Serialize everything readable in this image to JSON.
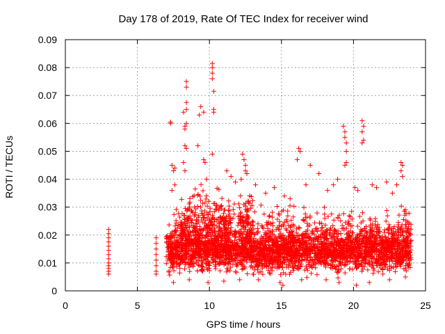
{
  "chart_data": {
    "type": "scatter",
    "title": "Day 178 of 2019, Rate Of TEC Index for receiver wind",
    "xlabel": "GPS time / hours",
    "ylabel": "ROTI / TECUs",
    "xlim": [
      0,
      25
    ],
    "ylim": [
      0,
      0.09
    ],
    "xticks": [
      0,
      5,
      10,
      15,
      20,
      25
    ],
    "xtick_labels": [
      "0",
      "5",
      "10",
      "15",
      "20",
      "25"
    ],
    "yticks": [
      0,
      0.01,
      0.02,
      0.03,
      0.04,
      0.05,
      0.06,
      0.07,
      0.08,
      0.09
    ],
    "ytick_labels": [
      "0",
      "0.01",
      "0.02",
      "0.03",
      "0.04",
      "0.05",
      "0.06",
      "0.07",
      "0.08",
      "0.09"
    ],
    "grid": true,
    "marker": "+",
    "color": "#ff0000",
    "points": [
      [
        3.0,
        0.022
      ],
      [
        3.0,
        0.0205
      ],
      [
        3.0,
        0.019
      ],
      [
        3.0,
        0.0175
      ],
      [
        3.0,
        0.016
      ],
      [
        3.0,
        0.0145
      ],
      [
        3.0,
        0.013
      ],
      [
        3.0,
        0.0115
      ],
      [
        3.0,
        0.01
      ],
      [
        3.0,
        0.009
      ],
      [
        3.0,
        0.008
      ],
      [
        3.0,
        0.007
      ],
      [
        3.0,
        0.006
      ],
      [
        6.3,
        0.019
      ],
      [
        6.3,
        0.017
      ],
      [
        6.3,
        0.015
      ],
      [
        6.3,
        0.013
      ],
      [
        6.3,
        0.011
      ],
      [
        6.3,
        0.009
      ],
      [
        6.3,
        0.007
      ],
      [
        6.3,
        0.006
      ],
      [
        7.3,
        0.0605
      ],
      [
        7.3,
        0.06
      ],
      [
        7.4,
        0.045
      ],
      [
        7.5,
        0.043
      ],
      [
        7.6,
        0.044
      ],
      [
        7.6,
        0.038
      ],
      [
        7.4,
        0.036
      ],
      [
        8.2,
        0.064
      ],
      [
        8.3,
        0.059
      ],
      [
        8.3,
        0.058
      ],
      [
        8.4,
        0.075
      ],
      [
        8.4,
        0.073
      ],
      [
        8.4,
        0.0675
      ],
      [
        8.4,
        0.065
      ],
      [
        8.4,
        0.06
      ],
      [
        8.3,
        0.052
      ],
      [
        8.4,
        0.051
      ],
      [
        8.2,
        0.046
      ],
      [
        8.3,
        0.043
      ],
      [
        9.2,
        0.052
      ],
      [
        9.4,
        0.066
      ],
      [
        9.6,
        0.064
      ],
      [
        9.3,
        0.063
      ],
      [
        9.6,
        0.047
      ],
      [
        9.7,
        0.046
      ],
      [
        9.8,
        0.04
      ],
      [
        10.2,
        0.0815
      ],
      [
        10.2,
        0.08
      ],
      [
        10.2,
        0.078
      ],
      [
        10.2,
        0.076
      ],
      [
        10.3,
        0.0715
      ],
      [
        10.3,
        0.065
      ],
      [
        10.3,
        0.064
      ],
      [
        10.2,
        0.049
      ],
      [
        12.3,
        0.049
      ],
      [
        12.4,
        0.047
      ],
      [
        12.5,
        0.045
      ],
      [
        12.5,
        0.043
      ],
      [
        12.6,
        0.042
      ],
      [
        12.2,
        0.04
      ],
      [
        16.2,
        0.051
      ],
      [
        16.3,
        0.05
      ],
      [
        16.1,
        0.047
      ],
      [
        17.0,
        0.045
      ],
      [
        19.3,
        0.059
      ],
      [
        19.4,
        0.057
      ],
      [
        19.4,
        0.055
      ],
      [
        19.5,
        0.053
      ],
      [
        19.5,
        0.05
      ],
      [
        19.5,
        0.046
      ],
      [
        19.4,
        0.045
      ],
      [
        20.6,
        0.061
      ],
      [
        20.7,
        0.059
      ],
      [
        20.6,
        0.057
      ],
      [
        20.7,
        0.054
      ],
      [
        20.6,
        0.053
      ],
      [
        23.3,
        0.046
      ],
      [
        23.4,
        0.045
      ],
      [
        23.3,
        0.043
      ],
      [
        23.4,
        0.041
      ],
      [
        11.2,
        0.043
      ],
      [
        11.5,
        0.041
      ],
      [
        11.8,
        0.039
      ],
      [
        13.2,
        0.038
      ],
      [
        13.9,
        0.035
      ],
      [
        14.5,
        0.037
      ],
      [
        15.2,
        0.034
      ],
      [
        15.6,
        0.033
      ],
      [
        16.7,
        0.038
      ],
      [
        17.6,
        0.042
      ],
      [
        18.2,
        0.036
      ],
      [
        18.6,
        0.038
      ],
      [
        18.9,
        0.04
      ],
      [
        20.1,
        0.037
      ],
      [
        20.3,
        0.036
      ],
      [
        21.3,
        0.038
      ],
      [
        21.6,
        0.037
      ],
      [
        22.3,
        0.039
      ],
      [
        22.7,
        0.035
      ],
      [
        23.0,
        0.038
      ],
      [
        11.0,
        0.0035
      ],
      [
        12.1,
        0.004
      ],
      [
        14.9,
        0.003
      ],
      [
        15.1,
        0.002
      ],
      [
        16.4,
        0.004
      ],
      [
        19.0,
        0.003
      ],
      [
        20.2,
        0.002
      ],
      [
        21.1,
        0.003
      ],
      [
        22.5,
        0.004
      ],
      [
        23.6,
        0.005
      ],
      [
        9.9,
        0.003
      ],
      [
        8.6,
        0.004
      ],
      [
        7.5,
        0.003
      ],
      [
        18.1,
        0.004
      ],
      [
        13.4,
        0.004
      ]
    ],
    "dense_bands": [
      {
        "x": [
          7.0,
          24.0
        ],
        "y": [
          0.004,
          0.025
        ],
        "count": 2600
      },
      {
        "x": [
          7.3,
          24.0
        ],
        "y": [
          0.005,
          0.034
        ],
        "count": 700
      },
      {
        "x": [
          8.0,
          11.5
        ],
        "y": [
          0.008,
          0.04
        ],
        "count": 250
      },
      {
        "x": [
          12.0,
          13.0
        ],
        "y": [
          0.01,
          0.04
        ],
        "count": 80
      }
    ]
  }
}
